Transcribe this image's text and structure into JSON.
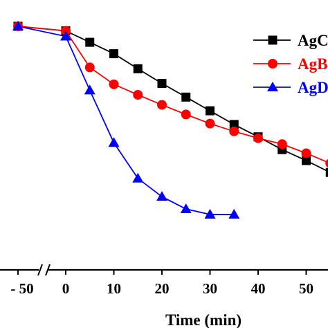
{
  "chart_data": {
    "type": "line",
    "xlabel": "Time (min)",
    "ylabel": "",
    "x_ticks": [
      -50,
      0,
      10,
      20,
      30,
      40,
      50
    ],
    "x_ticks_text": [
      "- 50",
      "0",
      "10",
      "20",
      "30",
      "40",
      "50"
    ],
    "axis_break": true,
    "grid": false,
    "legend_position": "top-right",
    "series": [
      {
        "name": "AgC",
        "color": "#000000",
        "marker": "square",
        "x": [
          -50,
          0,
          5,
          10,
          15,
          20,
          25,
          30,
          35,
          40,
          45,
          50,
          55
        ],
        "y": [
          1.0,
          0.99,
          0.965,
          0.94,
          0.907,
          0.875,
          0.845,
          0.815,
          0.785,
          0.758,
          0.73,
          0.706,
          0.68
        ]
      },
      {
        "name": "AgB",
        "color": "#ff0000",
        "marker": "circle",
        "x": [
          -50,
          0,
          5,
          10,
          15,
          20,
          25,
          30,
          35,
          40,
          45,
          50,
          55
        ],
        "y": [
          1.0,
          0.99,
          0.91,
          0.873,
          0.85,
          0.828,
          0.807,
          0.787,
          0.77,
          0.755,
          0.742,
          0.722,
          0.7
        ]
      },
      {
        "name": "AgD",
        "color": "#0000ff",
        "marker": "triangle",
        "x": [
          -50,
          0,
          5,
          10,
          15,
          20,
          25,
          30,
          35
        ],
        "y": [
          1.0,
          0.978,
          0.86,
          0.745,
          0.667,
          0.627,
          0.6,
          0.588,
          0.588
        ]
      }
    ]
  }
}
